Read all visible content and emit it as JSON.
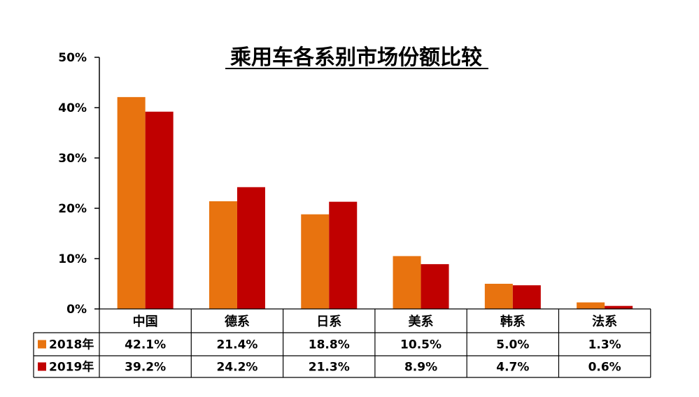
{
  "chart_data": {
    "type": "bar",
    "title": "乘用车各系别市场份额比较",
    "categories": [
      "中国",
      "德系",
      "日系",
      "美系",
      "韩系",
      "法系"
    ],
    "ylim": [
      0,
      50
    ],
    "yticks": [
      0,
      10,
      20,
      30,
      40,
      50
    ],
    "ytick_labels": [
      "0%",
      "10%",
      "20%",
      "30%",
      "40%",
      "50%"
    ],
    "grid": false,
    "legend": "table-below",
    "series": [
      {
        "name": "2018年",
        "color": "#E8730F",
        "values": [
          42.1,
          21.4,
          18.8,
          10.5,
          5.0,
          1.3
        ],
        "labels": [
          "42.1%",
          "21.4%",
          "18.8%",
          "10.5%",
          "5.0%",
          "1.3%"
        ]
      },
      {
        "name": "2019年",
        "color": "#C00000",
        "values": [
          39.2,
          24.2,
          21.3,
          8.9,
          4.7,
          0.6
        ],
        "labels": [
          "39.2%",
          "24.2%",
          "21.3%",
          "8.9%",
          "4.7%",
          "0.6%"
        ]
      }
    ]
  }
}
